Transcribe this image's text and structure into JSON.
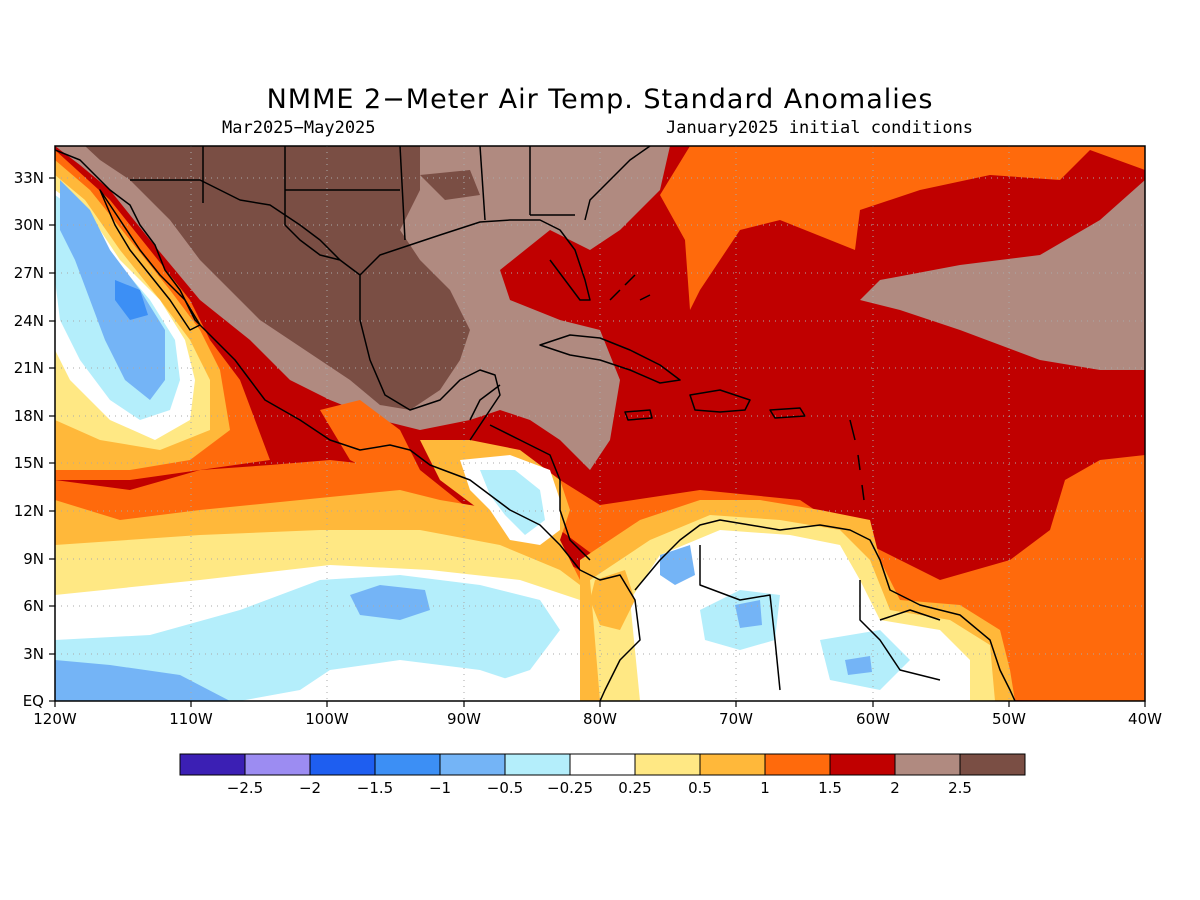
{
  "title": "NMME 2−Meter Air Temp. Standard Anomalies",
  "period": "Mar2025−May2025",
  "initial_conditions": "January2025 initial conditions",
  "map": {
    "lon_range": [
      -120,
      -40
    ],
    "lat_range": [
      0,
      35
    ],
    "lon_ticks": [
      "120W",
      "110W",
      "100W",
      "90W",
      "80W",
      "70W",
      "60W",
      "50W",
      "40W"
    ],
    "lat_ticks": [
      "EQ",
      "3N",
      "6N",
      "9N",
      "12N",
      "15N",
      "18N",
      "21N",
      "24N",
      "27N",
      "30N",
      "33N"
    ],
    "grid": true
  },
  "legend": {
    "colors": [
      "#3b1fb4",
      "#9c8cf2",
      "#1e5ef0",
      "#3c8ff5",
      "#74b4f6",
      "#b4eefb",
      "#ffffff",
      "#ffe884",
      "#ffb83a",
      "#ff6a0c",
      "#c00000",
      "#b08a80",
      "#7a4e44"
    ],
    "labels": [
      "−2.5",
      "−2",
      "−1.5",
      "−1",
      "−0.5",
      "−0.25",
      "0.25",
      "0.5",
      "1",
      "1.5",
      "2",
      "2.5"
    ]
  }
}
